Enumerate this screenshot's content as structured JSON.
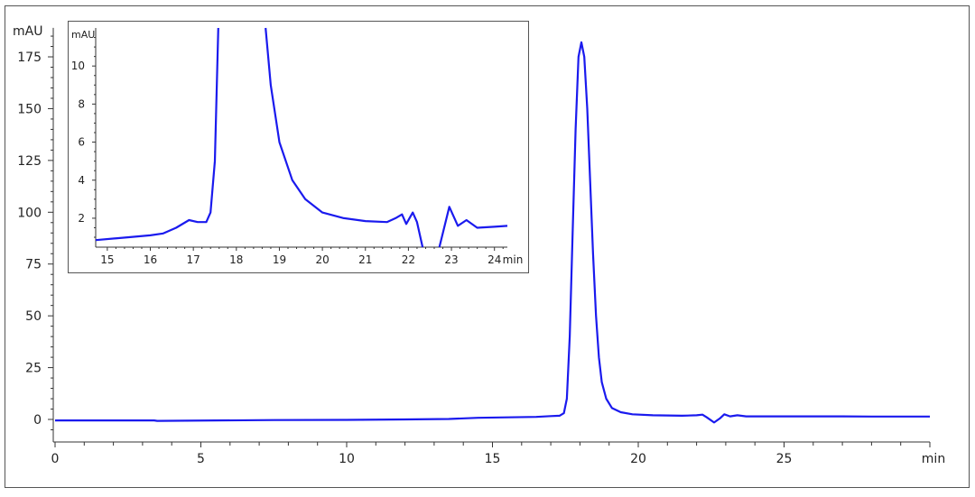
{
  "chart_data": [
    {
      "type": "line",
      "xlabel": "min",
      "ylabel": "mAU",
      "xlim": [
        0,
        30
      ],
      "ylim": [
        -10,
        189
      ],
      "xticks": [
        0,
        5,
        10,
        15,
        20,
        25
      ],
      "yticks": [
        0,
        25,
        50,
        75,
        100,
        125,
        150,
        175
      ],
      "grid": false,
      "line_color": "#1a1aee",
      "series": [
        {
          "x": [
            0,
            3.4,
            3.5,
            7.5,
            10,
            12,
            13.5,
            14.5,
            15.5,
            16.5,
            17.0,
            17.3,
            17.45,
            17.55,
            17.65,
            17.75,
            17.85,
            17.95,
            18.05,
            18.15,
            18.25,
            18.35,
            18.45,
            18.55,
            18.65,
            18.75,
            18.9,
            19.1,
            19.4,
            19.8,
            20.5,
            21.5,
            22.0,
            22.2,
            22.35,
            22.6,
            22.8,
            22.95,
            23.15,
            23.4,
            23.7,
            25,
            27,
            28,
            30
          ],
          "y": [
            -0.5,
            -0.5,
            -0.7,
            -0.3,
            -0.2,
            0,
            0.2,
            0.8,
            1.0,
            1.2,
            1.6,
            1.8,
            3,
            10,
            40,
            90,
            140,
            175,
            182,
            175,
            150,
            115,
            80,
            50,
            30,
            18,
            10,
            5.5,
            3.5,
            2.5,
            2.0,
            1.8,
            2.0,
            2.3,
            1.0,
            -1.5,
            0.5,
            2.5,
            1.5,
            2.0,
            1.5,
            1.5,
            1.5,
            1.4,
            1.4
          ]
        }
      ]
    },
    {
      "type": "line",
      "xlabel": "min",
      "ylabel": "mAU",
      "xlim": [
        14.73,
        24.3
      ],
      "ylim": [
        0.48,
        12
      ],
      "xticks": [
        15,
        16,
        17,
        18,
        19,
        20,
        21,
        22,
        23,
        24
      ],
      "yticks": [
        2,
        4,
        6,
        8,
        10
      ],
      "grid": false,
      "legend": "inset top-left",
      "line_color": "#1a1aee",
      "segments": [
        {
          "x": [
            14.73,
            15.5,
            16,
            16.3,
            16.6,
            16.9,
            17.1,
            17.3,
            17.4,
            17.5,
            17.58
          ],
          "y": [
            0.85,
            1.0,
            1.1,
            1.2,
            1.5,
            1.9,
            1.8,
            1.8,
            2.3,
            5,
            12
          ]
        },
        {
          "x": [
            18.68,
            18.8,
            19.0,
            19.3,
            19.6,
            20,
            20.5,
            21,
            21.5,
            21.7,
            21.85,
            21.95,
            22.1,
            22.2,
            22.33
          ],
          "y": [
            12,
            9,
            6,
            4,
            3,
            2.3,
            2.0,
            1.85,
            1.8,
            2.0,
            2.2,
            1.7,
            2.3,
            1.8,
            0.48
          ]
        },
        {
          "x": [
            22.72,
            22.95,
            23.15,
            23.35,
            23.6,
            24,
            24.3
          ],
          "y": [
            0.48,
            2.6,
            1.6,
            1.9,
            1.5,
            1.55,
            1.6
          ]
        }
      ]
    }
  ]
}
